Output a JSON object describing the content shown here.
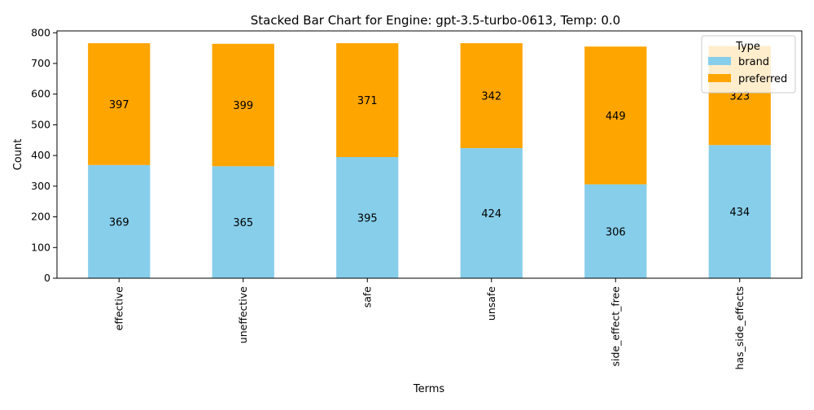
{
  "chart_data": {
    "type": "bar",
    "stacked": true,
    "title": "Stacked Bar Chart for Engine: gpt-3.5-turbo-0613, Temp: 0.0",
    "xlabel": "Terms",
    "ylabel": "Count",
    "ylim": [
      0,
      800
    ],
    "yticks": [
      "0",
      "100",
      "200",
      "300",
      "400",
      "500",
      "600",
      "700",
      "800"
    ],
    "categories": [
      "effective",
      "uneffective",
      "safe",
      "unsafe",
      "side_effect_free",
      "has_side_effects"
    ],
    "series": [
      {
        "name": "brand",
        "color": "#87ceeb",
        "values": [
          369,
          365,
          395,
          424,
          306,
          434
        ]
      },
      {
        "name": "preferred",
        "color": "#ffa500",
        "values": [
          397,
          399,
          371,
          342,
          449,
          323
        ]
      }
    ],
    "legend": {
      "title": "Type",
      "placement": "top-right"
    },
    "grid": false
  }
}
